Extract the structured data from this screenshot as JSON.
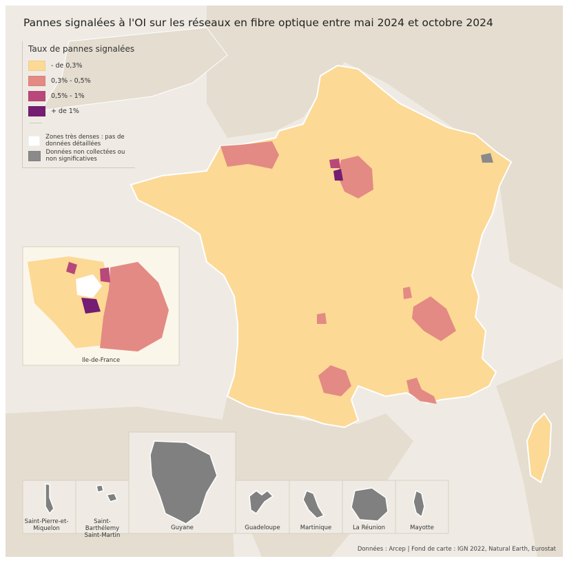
{
  "title": "Pannes signalées à l'OI sur les réseaux en fibre optique entre mai 2024 et octobre 2024",
  "legend": {
    "title": "Taux de pannes signalées",
    "classes": [
      {
        "label": "- de 0,3%",
        "color": "#fcd995"
      },
      {
        "label": "0,3% - 0,5%",
        "color": "#e38a84"
      },
      {
        "label": "0,5% - 1%",
        "color": "#b8487a"
      },
      {
        "label": "+ de 1%",
        "color": "#741d72"
      }
    ],
    "extra": [
      {
        "label": "Zones très denses : pas de données détaillées",
        "color": "#ffffff"
      },
      {
        "label": "Données non collectées ou non significatives",
        "color": "#8a8a8a"
      }
    ]
  },
  "insets": {
    "idf": "Ile-de-France",
    "overseas": [
      "Saint-Pierre-et-Miquelon",
      "Saint-Barthélemy Saint-Martin",
      "Guyane",
      "Guadeloupe",
      "Martinique",
      "La Réunion",
      "Mayotte"
    ]
  },
  "credits": "Données : Arcep | Fond de carte : IGN 2022, Natural Earth, Eurostat"
}
